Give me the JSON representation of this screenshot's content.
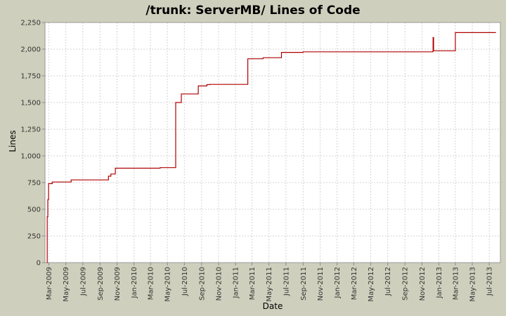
{
  "chart_data": {
    "type": "line",
    "title": "/trunk: ServerMB/ Lines of Code",
    "xlabel": "Date",
    "ylabel": "Lines",
    "ylim": [
      0,
      2250
    ],
    "y_ticks": [
      0,
      250,
      500,
      750,
      1000,
      1250,
      1500,
      1750,
      2000,
      2250
    ],
    "y_tick_labels": [
      "0",
      "250",
      "500",
      "750",
      "1,000",
      "1,250",
      "1,500",
      "1,750",
      "2,000",
      "2,250"
    ],
    "xlim": [
      "2009-02-15",
      "2013-08-10"
    ],
    "x_ticks": [
      "2009-03-01",
      "2009-05-01",
      "2009-07-01",
      "2009-09-01",
      "2009-11-01",
      "2010-01-01",
      "2010-03-01",
      "2010-05-01",
      "2010-07-01",
      "2010-09-01",
      "2010-11-01",
      "2011-01-01",
      "2011-03-01",
      "2011-05-01",
      "2011-07-01",
      "2011-09-01",
      "2011-11-01",
      "2012-01-01",
      "2012-03-01",
      "2012-05-01",
      "2012-07-01",
      "2012-09-01",
      "2012-11-01",
      "2013-01-01",
      "2013-03-01",
      "2013-05-01",
      "2013-07-01"
    ],
    "x_tick_labels": [
      "Mar-2009",
      "May-2009",
      "Jul-2009",
      "Sep-2009",
      "Nov-2009",
      "Jan-2010",
      "Mar-2010",
      "May-2010",
      "Jul-2010",
      "Sep-2010",
      "Nov-2010",
      "Jan-2011",
      "Mar-2011",
      "May-2011",
      "Jul-2011",
      "Sep-2011",
      "Nov-2011",
      "Jan-2012",
      "Mar-2012",
      "May-2012",
      "Jul-2012",
      "Sep-2012",
      "Nov-2012",
      "Jan-2013",
      "Mar-2013",
      "May-2013",
      "Jul-2013"
    ],
    "grid": true,
    "line_color": "#b00000",
    "plot_background": "#ffffff",
    "grid_color": "#d4d4d4",
    "series": [
      {
        "step": true,
        "points": [
          [
            "2009-02-22",
            0
          ],
          [
            "2009-02-23",
            430
          ],
          [
            "2009-02-25",
            590
          ],
          [
            "2009-02-28",
            740
          ],
          [
            "2009-03-13",
            755
          ],
          [
            "2009-05-20",
            775
          ],
          [
            "2009-10-01",
            810
          ],
          [
            "2009-10-10",
            830
          ],
          [
            "2009-10-26",
            885
          ],
          [
            "2010-04-05",
            890
          ],
          [
            "2010-05-31",
            1500
          ],
          [
            "2010-06-20",
            1580
          ],
          [
            "2010-08-20",
            1655
          ],
          [
            "2010-09-20",
            1668
          ],
          [
            "2010-10-01",
            1670
          ],
          [
            "2011-02-14",
            1910
          ],
          [
            "2011-04-10",
            1920
          ],
          [
            "2011-06-15",
            1970
          ],
          [
            "2011-09-01",
            1975
          ],
          [
            "2012-12-10",
            1978
          ],
          [
            "2012-12-11",
            2110
          ],
          [
            "2012-12-13",
            1985
          ],
          [
            "2013-03-01",
            2155
          ],
          [
            "2013-07-25",
            2155
          ]
        ]
      }
    ]
  }
}
